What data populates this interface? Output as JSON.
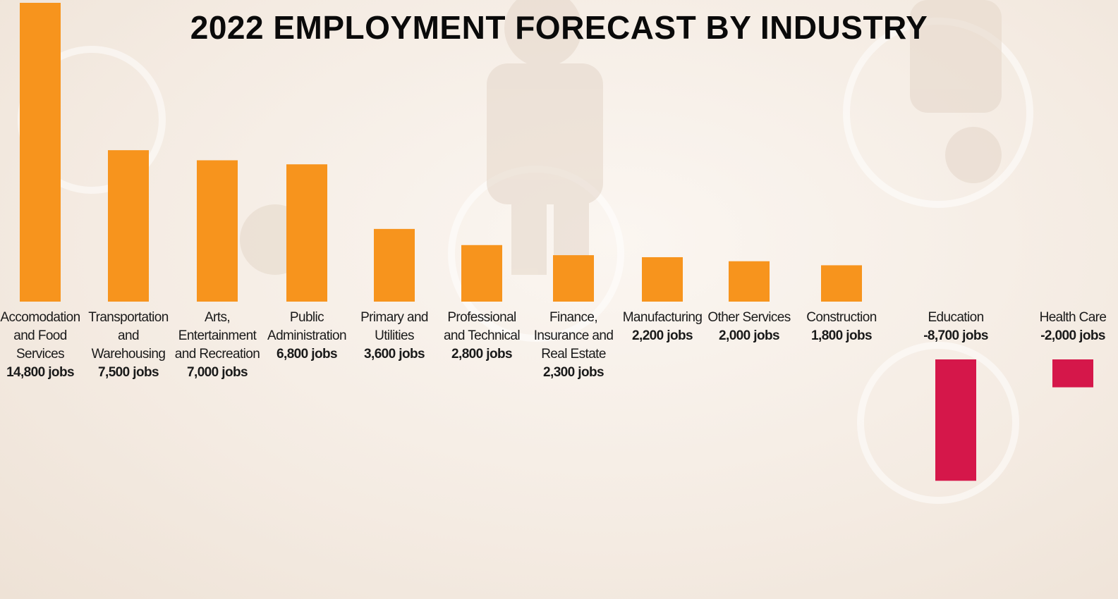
{
  "chart_data": {
    "type": "bar",
    "title": "2022 EMPLOYMENT FORECAST BY INDUSTRY",
    "categories": [
      "Accomodation and Food Services",
      "Transportation and Warehousing",
      "Arts, Entertainment and Recreation",
      "Public Administration",
      "Primary and Utilities",
      "Professional and Technical",
      "Finance, Insurance and Real Estate",
      "Manufacturing",
      "Other Services",
      "Construction",
      "Education",
      "Health Care"
    ],
    "values": [
      14800,
      7500,
      7000,
      6800,
      3600,
      2800,
      2300,
      2200,
      2000,
      1800,
      -8700,
      -2000
    ],
    "value_labels": [
      "14,800 jobs",
      "7,500 jobs",
      "7,000 jobs",
      "6,800 jobs",
      "3,600 jobs",
      "2,800 jobs",
      "2,300 jobs",
      "2,200 jobs",
      "2,000 jobs",
      "1,800 jobs",
      "-8,700 jobs",
      "-2,000 jobs"
    ],
    "positive_color": "#f7941d",
    "negative_color": "#d5174a"
  }
}
